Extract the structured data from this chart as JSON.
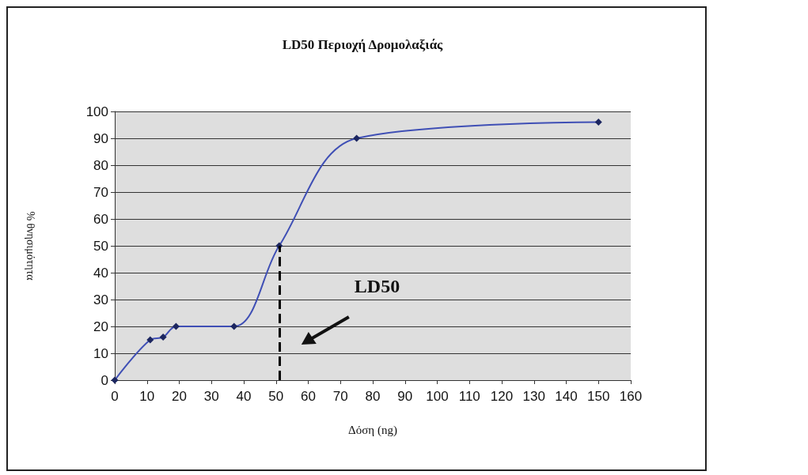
{
  "chart_data": {
    "type": "line",
    "title": "LD50 Περιοχή Δρομολαξιάς",
    "xlabel": "Δόση (ng)",
    "ylabel": "% θνησιμότητα",
    "series": [
      {
        "color": "#3f4fb5",
        "x": [
          0,
          11,
          15,
          19,
          37,
          51,
          75,
          150
        ],
        "values": [
          0,
          15,
          16,
          20,
          20,
          50,
          90,
          96
        ]
      }
    ],
    "xlim": [
      0,
      160
    ],
    "xticks": [
      0,
      10,
      20,
      30,
      40,
      50,
      60,
      70,
      80,
      90,
      100,
      110,
      120,
      130,
      140,
      150,
      160
    ],
    "ylim": [
      0,
      100
    ],
    "yticks": [
      0,
      10,
      20,
      30,
      40,
      50,
      60,
      70,
      80,
      90,
      100
    ],
    "grid": "y",
    "marker": "diamond",
    "line_style": "solid",
    "ref_lines": [
      {
        "axis": "x",
        "value": 51,
        "label": "LD50",
        "color": "#000000",
        "line_style": "dashed"
      }
    ]
  }
}
